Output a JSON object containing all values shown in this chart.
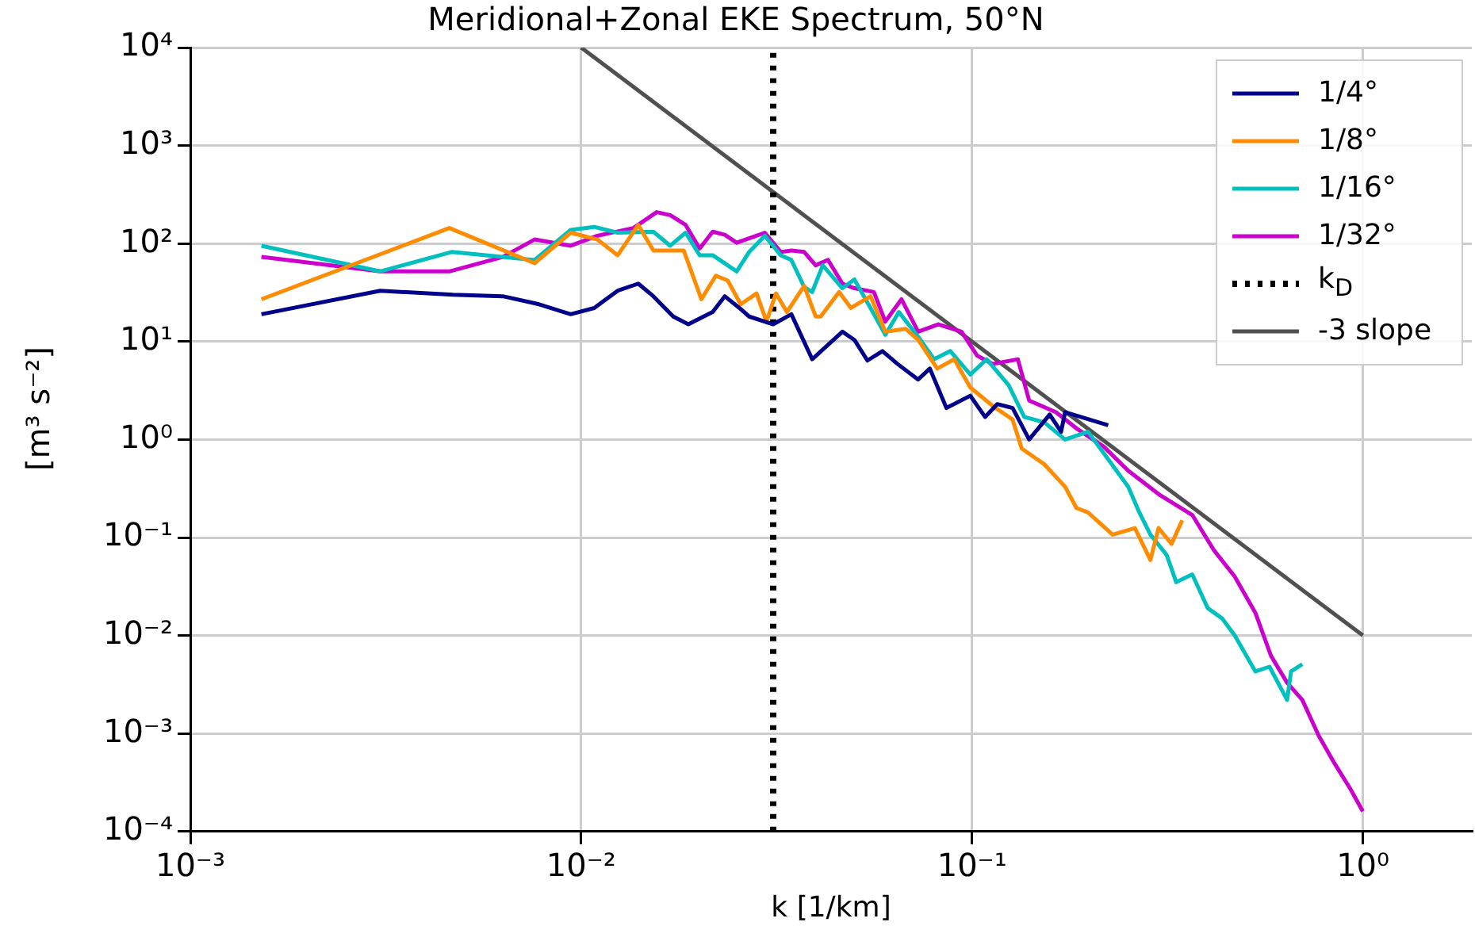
{
  "chart_data": {
    "type": "line",
    "title": "Meridional+Zonal EKE Spectrum, 50°N",
    "xlabel": "k [1/km]",
    "ylabel": "[m³ s⁻²]",
    "log": "xy",
    "grid": true,
    "legend": "top right",
    "marker": "none",
    "xlim": [
      0.001,
      1.9
    ],
    "ylim": [
      0.0001,
      10000
    ],
    "xticks": [
      {
        "value": 0.001,
        "label": "10⁻³"
      },
      {
        "value": 0.01,
        "label": "10⁻²"
      },
      {
        "value": 0.1,
        "label": "10⁻¹"
      },
      {
        "value": 1,
        "label": "10⁰"
      }
    ],
    "yticks": [
      {
        "value": 0.0001,
        "label": "10⁻⁴"
      },
      {
        "value": 0.001,
        "label": "10⁻³"
      },
      {
        "value": 0.01,
        "label": "10⁻²"
      },
      {
        "value": 0.1,
        "label": "10⁻¹"
      },
      {
        "value": 1,
        "label": "10⁰"
      },
      {
        "value": 10,
        "label": "10¹"
      },
      {
        "value": 100,
        "label": "10²"
      },
      {
        "value": 1000,
        "label": "10³"
      },
      {
        "value": 10000,
        "label": "10⁴"
      }
    ],
    "series": [
      {
        "name": "1/4°",
        "color": "#00008b",
        "x": [
          0.00152,
          0.00306,
          0.0047,
          0.0063,
          0.0078,
          0.0094,
          0.0108,
          0.0124,
          0.014,
          0.0153,
          0.0172,
          0.0188,
          0.0217,
          0.0233,
          0.0254,
          0.0269,
          0.031,
          0.0345,
          0.039,
          0.0466,
          0.05,
          0.054,
          0.059,
          0.0645,
          0.0728,
          0.078,
          0.086,
          0.099,
          0.108,
          0.116,
          0.127,
          0.14,
          0.158,
          0.169,
          0.173,
          0.223
        ],
        "values": [
          19,
          33,
          30,
          29,
          24,
          19,
          22,
          33,
          39,
          29,
          18,
          15,
          20,
          29,
          22,
          18,
          15,
          19,
          6.6,
          12.6,
          10.4,
          6.4,
          8,
          5.9,
          4.1,
          5.3,
          2.1,
          2.8,
          1.7,
          2.3,
          2.1,
          1.0,
          1.8,
          1.2,
          1.9,
          1.4
        ]
      },
      {
        "name": "1/8°",
        "color": "#ff8c00",
        "x": [
          0.00152,
          0.0046,
          0.0076,
          0.0094,
          0.011,
          0.0124,
          0.014,
          0.0153,
          0.0183,
          0.0203,
          0.0221,
          0.0237,
          0.0256,
          0.0281,
          0.0298,
          0.0315,
          0.0336,
          0.0372,
          0.0398,
          0.041,
          0.0457,
          0.049,
          0.055,
          0.06,
          0.0676,
          0.0728,
          0.0815,
          0.09,
          0.099,
          0.113,
          0.127,
          0.134,
          0.153,
          0.173,
          0.185,
          0.198,
          0.229,
          0.261,
          0.286,
          0.3,
          0.324,
          0.345
        ],
        "values": [
          27,
          144,
          63,
          129,
          110,
          76,
          155,
          85,
          85,
          27,
          47,
          42,
          24,
          31,
          16,
          31,
          20,
          37,
          18,
          18,
          32,
          22,
          29,
          12.6,
          13.5,
          10.4,
          5.3,
          6.6,
          3.4,
          2.2,
          1.6,
          0.81,
          0.56,
          0.33,
          0.2,
          0.18,
          0.107,
          0.125,
          0.059,
          0.125,
          0.086,
          0.15
        ]
      },
      {
        "name": "1/16°",
        "color": "#00bfbf",
        "x": [
          0.00152,
          0.00306,
          0.00466,
          0.0076,
          0.0094,
          0.0108,
          0.0124,
          0.0153,
          0.0169,
          0.0185,
          0.0201,
          0.0217,
          0.025,
          0.0269,
          0.0295,
          0.0324,
          0.0345,
          0.0372,
          0.039,
          0.0415,
          0.0466,
          0.05,
          0.055,
          0.06,
          0.065,
          0.0728,
          0.08,
          0.088,
          0.099,
          0.109,
          0.124,
          0.136,
          0.153,
          0.173,
          0.198,
          0.223,
          0.251,
          0.268,
          0.286,
          0.315,
          0.333,
          0.366,
          0.401,
          0.436,
          0.47,
          0.531,
          0.577,
          0.64,
          0.655,
          0.7
        ],
        "values": [
          95,
          52,
          82,
          68,
          138,
          148,
          129,
          132,
          95,
          129,
          76,
          76,
          52,
          82,
          120,
          76,
          68,
          36,
          32,
          60,
          35,
          43,
          22,
          11.7,
          20,
          11.2,
          6.6,
          8,
          4.6,
          6.6,
          3.6,
          1.7,
          1.5,
          1.0,
          1.2,
          0.63,
          0.33,
          0.18,
          0.107,
          0.066,
          0.035,
          0.042,
          0.019,
          0.015,
          0.01,
          0.0043,
          0.0048,
          0.0022,
          0.0043,
          0.0051
        ]
      },
      {
        "name": "1/32°",
        "color": "#cc00cc",
        "x": [
          0.00152,
          0.00306,
          0.0046,
          0.0063,
          0.0076,
          0.0094,
          0.011,
          0.0136,
          0.0156,
          0.0169,
          0.0185,
          0.0201,
          0.0217,
          0.0233,
          0.025,
          0.0295,
          0.0324,
          0.0345,
          0.0372,
          0.0398,
          0.0428,
          0.0466,
          0.05,
          0.0561,
          0.06,
          0.066,
          0.0728,
          0.082,
          0.094,
          0.103,
          0.113,
          0.131,
          0.14,
          0.164,
          0.185,
          0.217,
          0.251,
          0.303,
          0.366,
          0.416,
          0.47,
          0.531,
          0.582,
          0.64,
          0.7,
          0.771,
          0.845,
          0.93,
          1.0
        ],
        "values": [
          73,
          52,
          52,
          73,
          110,
          95,
          120,
          144,
          209,
          195,
          155,
          89,
          132,
          123,
          102,
          129,
          82,
          85,
          82,
          60,
          68,
          39,
          35,
          32,
          16,
          27,
          12.6,
          15,
          12.6,
          7.2,
          5.9,
          6.6,
          2.5,
          1.9,
          1.3,
          0.85,
          0.48,
          0.27,
          0.17,
          0.074,
          0.04,
          0.017,
          0.0062,
          0.0033,
          0.0022,
          0.00095,
          0.0005,
          0.00027,
          0.00016
        ]
      },
      {
        "name": "k$_{D}$",
        "color": "#000000",
        "line_style": "dotted",
        "x": [
          0.031,
          0.031
        ],
        "values": [
          0.0001,
          10000
        ]
      },
      {
        "name": "-3 slope",
        "color": "#505050",
        "x": [
          0.01,
          1
        ],
        "values": [
          10000,
          0.01
        ]
      }
    ]
  }
}
